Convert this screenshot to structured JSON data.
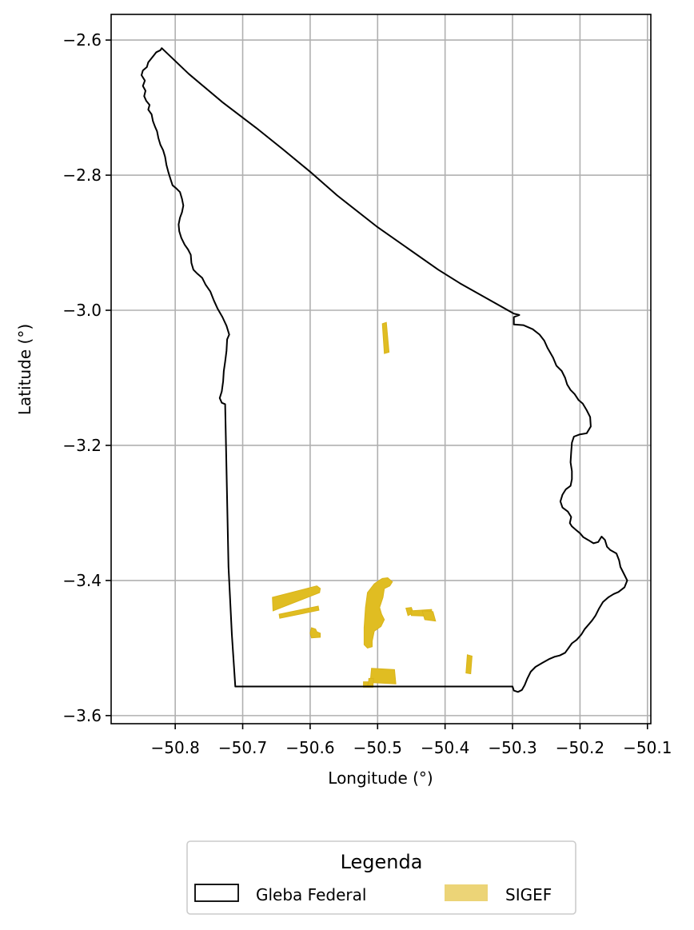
{
  "chart_data": {
    "type": "map",
    "xlabel": "Longitude (°)",
    "ylabel": "Latitude (°)",
    "xlim": [
      -50.895,
      -50.095
    ],
    "ylim": [
      -3.612,
      -2.562
    ],
    "grid": true,
    "x_ticks": [
      {
        "value": -50.8,
        "label": "−50.8"
      },
      {
        "value": -50.7,
        "label": "−50.7"
      },
      {
        "value": -50.6,
        "label": "−50.6"
      },
      {
        "value": -50.5,
        "label": "−50.5"
      },
      {
        "value": -50.4,
        "label": "−50.4"
      },
      {
        "value": -50.3,
        "label": "−50.3"
      },
      {
        "value": -50.2,
        "label": "−50.2"
      },
      {
        "value": -50.1,
        "label": "−50.1"
      }
    ],
    "y_ticks": [
      {
        "value": -2.6,
        "label": "−2.6"
      },
      {
        "value": -2.8,
        "label": "−2.8"
      },
      {
        "value": -3.0,
        "label": "−3.0"
      },
      {
        "value": -3.2,
        "label": "−3.2"
      },
      {
        "value": -3.4,
        "label": "−3.4"
      },
      {
        "value": -3.6,
        "label": "−3.6"
      }
    ],
    "legend": {
      "title": "Legenda",
      "placement": "bottom-center",
      "entries": [
        {
          "label": "Gleba Federal",
          "style": "outline",
          "color": "#000000"
        },
        {
          "label": "SIGEF",
          "style": "fill",
          "color": "#e6c64a"
        }
      ]
    },
    "gleba_boundary": [
      [
        -50.82,
        -2.612
      ],
      [
        -50.822,
        -2.615
      ],
      [
        -50.828,
        -2.618
      ],
      [
        -50.832,
        -2.623
      ],
      [
        -50.836,
        -2.628
      ],
      [
        -50.84,
        -2.633
      ],
      [
        -50.842,
        -2.64
      ],
      [
        -50.848,
        -2.645
      ],
      [
        -50.85,
        -2.652
      ],
      [
        -50.845,
        -2.66
      ],
      [
        -50.848,
        -2.668
      ],
      [
        -50.844,
        -2.675
      ],
      [
        -50.846,
        -2.683
      ],
      [
        -50.843,
        -2.69
      ],
      [
        -50.838,
        -2.696
      ],
      [
        -50.84,
        -2.703
      ],
      [
        -50.835,
        -2.71
      ],
      [
        -50.833,
        -2.72
      ],
      [
        -50.83,
        -2.728
      ],
      [
        -50.827,
        -2.735
      ],
      [
        -50.825,
        -2.745
      ],
      [
        -50.822,
        -2.755
      ],
      [
        -50.818,
        -2.763
      ],
      [
        -50.815,
        -2.773
      ],
      [
        -50.813,
        -2.785
      ],
      [
        -50.81,
        -2.796
      ],
      [
        -50.807,
        -2.806
      ],
      [
        -50.804,
        -2.815
      ],
      [
        -50.798,
        -2.82
      ],
      [
        -50.793,
        -2.825
      ],
      [
        -50.79,
        -2.835
      ],
      [
        -50.788,
        -2.845
      ],
      [
        -50.79,
        -2.855
      ],
      [
        -50.793,
        -2.863
      ],
      [
        -50.795,
        -2.873
      ],
      [
        -50.794,
        -2.883
      ],
      [
        -50.791,
        -2.893
      ],
      [
        -50.786,
        -2.903
      ],
      [
        -50.781,
        -2.91
      ],
      [
        -50.777,
        -2.918
      ],
      [
        -50.776,
        -2.93
      ],
      [
        -50.773,
        -2.94
      ],
      [
        -50.767,
        -2.946
      ],
      [
        -50.76,
        -2.952
      ],
      [
        -50.755,
        -2.962
      ],
      [
        -50.748,
        -2.972
      ],
      [
        -50.743,
        -2.985
      ],
      [
        -50.737,
        -2.998
      ],
      [
        -50.73,
        -3.01
      ],
      [
        -50.724,
        -3.023
      ],
      [
        -50.72,
        -3.036
      ],
      [
        -50.723,
        -3.043
      ],
      [
        -50.724,
        -3.06
      ],
      [
        -50.726,
        -3.076
      ],
      [
        -50.728,
        -3.09
      ],
      [
        -50.729,
        -3.105
      ],
      [
        -50.731,
        -3.12
      ],
      [
        -50.734,
        -3.13
      ],
      [
        -50.731,
        -3.137
      ],
      [
        -50.726,
        -3.139
      ],
      [
        -50.721,
        -3.38
      ],
      [
        -50.716,
        -3.48
      ],
      [
        -50.711,
        -3.557
      ],
      [
        -50.3,
        -3.557
      ],
      [
        -50.298,
        -3.563
      ],
      [
        -50.292,
        -3.565
      ],
      [
        -50.286,
        -3.562
      ],
      [
        -50.282,
        -3.555
      ],
      [
        -50.278,
        -3.545
      ],
      [
        -50.273,
        -3.535
      ],
      [
        -50.266,
        -3.528
      ],
      [
        -50.256,
        -3.522
      ],
      [
        -50.245,
        -3.516
      ],
      [
        -50.238,
        -3.513
      ],
      [
        -50.23,
        -3.511
      ],
      [
        -50.222,
        -3.507
      ],
      [
        -50.217,
        -3.5
      ],
      [
        -50.212,
        -3.493
      ],
      [
        -50.205,
        -3.488
      ],
      [
        -50.198,
        -3.48
      ],
      [
        -50.193,
        -3.472
      ],
      [
        -50.187,
        -3.465
      ],
      [
        -50.182,
        -3.459
      ],
      [
        -50.177,
        -3.452
      ],
      [
        -50.172,
        -3.442
      ],
      [
        -50.166,
        -3.432
      ],
      [
        -50.158,
        -3.425
      ],
      [
        -50.15,
        -3.42
      ],
      [
        -50.143,
        -3.417
      ],
      [
        -50.134,
        -3.41
      ],
      [
        -50.13,
        -3.4
      ],
      [
        -50.135,
        -3.39
      ],
      [
        -50.14,
        -3.38
      ],
      [
        -50.142,
        -3.37
      ],
      [
        -50.146,
        -3.36
      ],
      [
        -50.155,
        -3.355
      ],
      [
        -50.16,
        -3.35
      ],
      [
        -50.163,
        -3.34
      ],
      [
        -50.168,
        -3.335
      ],
      [
        -50.173,
        -3.343
      ],
      [
        -50.18,
        -3.345
      ],
      [
        -50.188,
        -3.34
      ],
      [
        -50.195,
        -3.336
      ],
      [
        -50.2,
        -3.33
      ],
      [
        -50.206,
        -3.325
      ],
      [
        -50.212,
        -3.32
      ],
      [
        -50.215,
        -3.315
      ],
      [
        -50.213,
        -3.306
      ],
      [
        -50.218,
        -3.298
      ],
      [
        -50.226,
        -3.292
      ],
      [
        -50.229,
        -3.283
      ],
      [
        -50.226,
        -3.273
      ],
      [
        -50.221,
        -3.265
      ],
      [
        -50.214,
        -3.26
      ],
      [
        -50.212,
        -3.25
      ],
      [
        -50.212,
        -3.238
      ],
      [
        -50.214,
        -3.225
      ],
      [
        -50.213,
        -3.21
      ],
      [
        -50.212,
        -3.196
      ],
      [
        -50.209,
        -3.187
      ],
      [
        -50.201,
        -3.184
      ],
      [
        -50.19,
        -3.182
      ],
      [
        -50.184,
        -3.172
      ],
      [
        -50.185,
        -3.158
      ],
      [
        -50.19,
        -3.148
      ],
      [
        -50.196,
        -3.138
      ],
      [
        -50.202,
        -3.133
      ],
      [
        -50.208,
        -3.124
      ],
      [
        -50.214,
        -3.118
      ],
      [
        -50.219,
        -3.11
      ],
      [
        -50.222,
        -3.1
      ],
      [
        -50.227,
        -3.09
      ],
      [
        -50.235,
        -3.082
      ],
      [
        -50.24,
        -3.07
      ],
      [
        -50.248,
        -3.056
      ],
      [
        -50.253,
        -3.045
      ],
      [
        -50.26,
        -3.036
      ],
      [
        -50.27,
        -3.028
      ],
      [
        -50.284,
        -3.022
      ],
      [
        -50.298,
        -3.021
      ],
      [
        -50.298,
        -3.01
      ],
      [
        -50.29,
        -3.007
      ],
      [
        -50.298,
        -3.005
      ],
      [
        -50.378,
        -2.96
      ],
      [
        -50.41,
        -2.94
      ],
      [
        -50.5,
        -2.877
      ],
      [
        -50.56,
        -2.83
      ],
      [
        -50.6,
        -2.795
      ],
      [
        -50.64,
        -2.762
      ],
      [
        -50.68,
        -2.73
      ],
      [
        -50.73,
        -2.692
      ],
      [
        -50.78,
        -2.65
      ],
      [
        -50.82,
        -2.612
      ]
    ],
    "sigef_parcels": [
      [
        [
          -50.493,
          -3.02
        ],
        [
          -50.487,
          -3.018
        ],
        [
          -50.483,
          -3.062
        ],
        [
          -50.49,
          -3.064
        ]
      ],
      [
        [
          -50.656,
          -3.425
        ],
        [
          -50.59,
          -3.408
        ],
        [
          -50.585,
          -3.412
        ],
        [
          -50.586,
          -3.418
        ],
        [
          -50.655,
          -3.445
        ]
      ],
      [
        [
          -50.646,
          -3.45
        ],
        [
          -50.588,
          -3.438
        ],
        [
          -50.587,
          -3.444
        ],
        [
          -50.645,
          -3.456
        ]
      ],
      [
        [
          -50.598,
          -3.47
        ],
        [
          -50.592,
          -3.472
        ],
        [
          -50.59,
          -3.476
        ],
        [
          -50.585,
          -3.478
        ],
        [
          -50.585,
          -3.484
        ],
        [
          -50.598,
          -3.485
        ],
        [
          -50.6,
          -3.478
        ]
      ],
      [
        [
          -50.493,
          -3.397
        ],
        [
          -50.485,
          -3.396
        ],
        [
          -50.478,
          -3.402
        ],
        [
          -50.482,
          -3.408
        ],
        [
          -50.49,
          -3.412
        ],
        [
          -50.492,
          -3.425
        ],
        [
          -50.497,
          -3.44
        ],
        [
          -50.494,
          -3.45
        ],
        [
          -50.49,
          -3.458
        ],
        [
          -50.495,
          -3.468
        ],
        [
          -50.505,
          -3.475
        ],
        [
          -50.508,
          -3.49
        ],
        [
          -50.508,
          -3.498
        ],
        [
          -50.515,
          -3.5
        ],
        [
          -50.52,
          -3.495
        ],
        [
          -50.52,
          -3.47
        ],
        [
          -50.518,
          -3.44
        ],
        [
          -50.515,
          -3.418
        ],
        [
          -50.505,
          -3.405
        ],
        [
          -50.498,
          -3.4
        ]
      ],
      [
        [
          -50.458,
          -3.441
        ],
        [
          -50.45,
          -3.44
        ],
        [
          -50.447,
          -3.448
        ],
        [
          -50.455,
          -3.452
        ]
      ],
      [
        [
          -50.451,
          -3.445
        ],
        [
          -50.42,
          -3.443
        ],
        [
          -50.42,
          -3.453
        ],
        [
          -50.45,
          -3.452
        ]
      ],
      [
        [
          -50.434,
          -3.445
        ],
        [
          -50.418,
          -3.446
        ],
        [
          -50.414,
          -3.46
        ],
        [
          -50.43,
          -3.458
        ]
      ],
      [
        [
          -50.367,
          -3.51
        ],
        [
          -50.36,
          -3.512
        ],
        [
          -50.362,
          -3.538
        ],
        [
          -50.369,
          -3.537
        ]
      ],
      [
        [
          -50.509,
          -3.53
        ],
        [
          -50.475,
          -3.532
        ],
        [
          -50.473,
          -3.553
        ],
        [
          -50.511,
          -3.551
        ]
      ],
      [
        [
          -50.513,
          -3.545
        ],
        [
          -50.506,
          -3.545
        ],
        [
          -50.507,
          -3.558
        ],
        [
          -50.514,
          -3.558
        ]
      ],
      [
        [
          -50.521,
          -3.55
        ],
        [
          -50.514,
          -3.55
        ],
        [
          -50.515,
          -3.558
        ],
        [
          -50.521,
          -3.558
        ]
      ]
    ]
  }
}
